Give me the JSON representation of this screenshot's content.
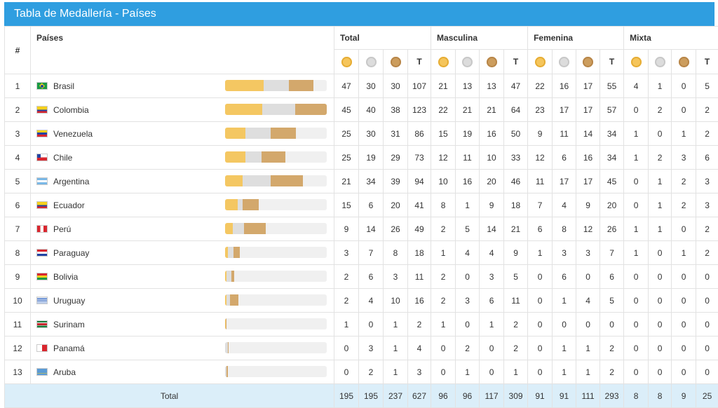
{
  "title": "Tabla de Medallería - Países",
  "headers": {
    "num": "#",
    "country": "Países",
    "groups": [
      "Total",
      "Masculina",
      "Femenina",
      "Mixta"
    ],
    "total_col": "T"
  },
  "colors": {
    "header_bg": "#2f9ee0",
    "gold": "#f4c762",
    "silver": "#dedede",
    "bronze": "#d3a86c",
    "total_row_bg": "#dbeef9"
  },
  "bar_max": 123,
  "rows": [
    {
      "rank": "1",
      "country": "Brasil",
      "flag": "brazil-flag-icon",
      "total": [
        "47",
        "30",
        "30",
        "107"
      ],
      "masc": [
        "21",
        "13",
        "13",
        "47"
      ],
      "fem": [
        "22",
        "16",
        "17",
        "55"
      ],
      "mix": [
        "4",
        "1",
        "0",
        "5"
      ]
    },
    {
      "rank": "2",
      "country": "Colombia",
      "flag": "colombia-flag-icon",
      "total": [
        "45",
        "40",
        "38",
        "123"
      ],
      "masc": [
        "22",
        "21",
        "21",
        "64"
      ],
      "fem": [
        "23",
        "17",
        "17",
        "57"
      ],
      "mix": [
        "0",
        "2",
        "0",
        "2"
      ]
    },
    {
      "rank": "3",
      "country": "Venezuela",
      "flag": "venezuela-flag-icon",
      "total": [
        "25",
        "30",
        "31",
        "86"
      ],
      "masc": [
        "15",
        "19",
        "16",
        "50"
      ],
      "fem": [
        "9",
        "11",
        "14",
        "34"
      ],
      "mix": [
        "1",
        "0",
        "1",
        "2"
      ]
    },
    {
      "rank": "4",
      "country": "Chile",
      "flag": "chile-flag-icon",
      "total": [
        "25",
        "19",
        "29",
        "73"
      ],
      "masc": [
        "12",
        "11",
        "10",
        "33"
      ],
      "fem": [
        "12",
        "6",
        "16",
        "34"
      ],
      "mix": [
        "1",
        "2",
        "3",
        "6"
      ]
    },
    {
      "rank": "5",
      "country": "Argentina",
      "flag": "argentina-flag-icon",
      "total": [
        "21",
        "34",
        "39",
        "94"
      ],
      "masc": [
        "10",
        "16",
        "20",
        "46"
      ],
      "fem": [
        "11",
        "17",
        "17",
        "45"
      ],
      "mix": [
        "0",
        "1",
        "2",
        "3"
      ]
    },
    {
      "rank": "6",
      "country": "Ecuador",
      "flag": "ecuador-flag-icon",
      "total": [
        "15",
        "6",
        "20",
        "41"
      ],
      "masc": [
        "8",
        "1",
        "9",
        "18"
      ],
      "fem": [
        "7",
        "4",
        "9",
        "20"
      ],
      "mix": [
        "0",
        "1",
        "2",
        "3"
      ]
    },
    {
      "rank": "7",
      "country": "Perú",
      "flag": "peru-flag-icon",
      "total": [
        "9",
        "14",
        "26",
        "49"
      ],
      "masc": [
        "2",
        "5",
        "14",
        "21"
      ],
      "fem": [
        "6",
        "8",
        "12",
        "26"
      ],
      "mix": [
        "1",
        "1",
        "0",
        "2"
      ]
    },
    {
      "rank": "8",
      "country": "Paraguay",
      "flag": "paraguay-flag-icon",
      "total": [
        "3",
        "7",
        "8",
        "18"
      ],
      "masc": [
        "1",
        "4",
        "4",
        "9"
      ],
      "fem": [
        "1",
        "3",
        "3",
        "7"
      ],
      "mix": [
        "1",
        "0",
        "1",
        "2"
      ]
    },
    {
      "rank": "9",
      "country": "Bolivia",
      "flag": "bolivia-flag-icon",
      "total": [
        "2",
        "6",
        "3",
        "11"
      ],
      "masc": [
        "2",
        "0",
        "3",
        "5"
      ],
      "fem": [
        "0",
        "6",
        "0",
        "6"
      ],
      "mix": [
        "0",
        "0",
        "0",
        "0"
      ]
    },
    {
      "rank": "10",
      "country": "Uruguay",
      "flag": "uruguay-flag-icon",
      "total": [
        "2",
        "4",
        "10",
        "16"
      ],
      "masc": [
        "2",
        "3",
        "6",
        "11"
      ],
      "fem": [
        "0",
        "1",
        "4",
        "5"
      ],
      "mix": [
        "0",
        "0",
        "0",
        "0"
      ]
    },
    {
      "rank": "11",
      "country": "Surinam",
      "flag": "suriname-flag-icon",
      "total": [
        "1",
        "0",
        "1",
        "2"
      ],
      "masc": [
        "1",
        "0",
        "1",
        "2"
      ],
      "fem": [
        "0",
        "0",
        "0",
        "0"
      ],
      "mix": [
        "0",
        "0",
        "0",
        "0"
      ]
    },
    {
      "rank": "12",
      "country": "Panamá",
      "flag": "panama-flag-icon",
      "total": [
        "0",
        "3",
        "1",
        "4"
      ],
      "masc": [
        "0",
        "2",
        "0",
        "2"
      ],
      "fem": [
        "0",
        "1",
        "1",
        "2"
      ],
      "mix": [
        "0",
        "0",
        "0",
        "0"
      ]
    },
    {
      "rank": "13",
      "country": "Aruba",
      "flag": "aruba-flag-icon",
      "total": [
        "0",
        "2",
        "1",
        "3"
      ],
      "masc": [
        "0",
        "1",
        "0",
        "1"
      ],
      "fem": [
        "0",
        "1",
        "1",
        "2"
      ],
      "mix": [
        "0",
        "0",
        "0",
        "0"
      ]
    }
  ],
  "totals": {
    "label": "Total",
    "total": [
      "195",
      "195",
      "237",
      "627"
    ],
    "masc": [
      "96",
      "96",
      "117",
      "309"
    ],
    "fem": [
      "91",
      "91",
      "111",
      "293"
    ],
    "mix": [
      "8",
      "8",
      "9",
      "25"
    ]
  }
}
